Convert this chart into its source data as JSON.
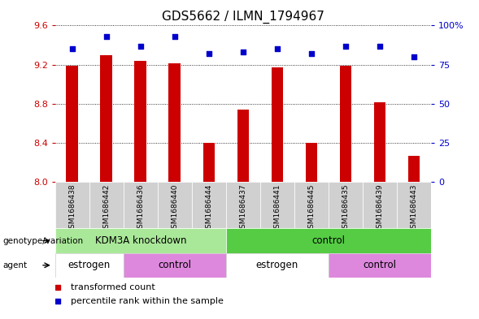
{
  "title": "GDS5662 / ILMN_1794967",
  "samples": [
    "GSM1686438",
    "GSM1686442",
    "GSM1686436",
    "GSM1686440",
    "GSM1686444",
    "GSM1686437",
    "GSM1686441",
    "GSM1686445",
    "GSM1686435",
    "GSM1686439",
    "GSM1686443"
  ],
  "transformed_counts": [
    9.19,
    9.3,
    9.24,
    9.21,
    8.4,
    8.74,
    9.17,
    8.4,
    9.19,
    8.82,
    8.27
  ],
  "percentile_ranks": [
    85,
    93,
    87,
    93,
    82,
    83,
    85,
    82,
    87,
    87,
    80
  ],
  "ylim_left": [
    8.0,
    9.6
  ],
  "ylim_right": [
    0,
    100
  ],
  "yticks_left": [
    8.0,
    8.4,
    8.8,
    9.2,
    9.6
  ],
  "yticks_right": [
    0,
    25,
    50,
    75,
    100
  ],
  "bar_color": "#cc0000",
  "dot_color": "#0000cc",
  "genotype_groups": [
    {
      "label": "KDM3A knockdown",
      "start": 0,
      "end": 5,
      "color": "#aae899"
    },
    {
      "label": "control",
      "start": 5,
      "end": 11,
      "color": "#55cc44"
    }
  ],
  "agent_groups": [
    {
      "label": "estrogen",
      "start": 0,
      "end": 2,
      "color": "#ffffff"
    },
    {
      "label": "control",
      "start": 2,
      "end": 5,
      "color": "#dd88dd"
    },
    {
      "label": "estrogen",
      "start": 5,
      "end": 8,
      "color": "#ffffff"
    },
    {
      "label": "control",
      "start": 8,
      "end": 11,
      "color": "#dd88dd"
    }
  ],
  "left_axis_color": "#cc0000",
  "right_axis_color": "#0000cc",
  "sample_bg_color": "#d0d0d0",
  "tick_label_fontsize": 8,
  "title_fontsize": 11,
  "bar_width": 0.35
}
